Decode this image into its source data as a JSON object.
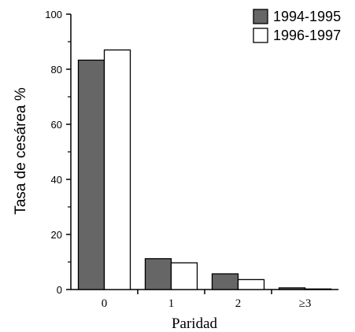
{
  "chart_data": {
    "type": "bar",
    "title": "",
    "ylabel": "Tasa de cesárea %",
    "xlabel": "Paridad",
    "categories": [
      "0",
      "1",
      "2",
      "≥3"
    ],
    "series": [
      {
        "name": "1994-1995",
        "color": "#666666",
        "values": [
          83.3,
          11.2,
          5.7,
          0.6
        ]
      },
      {
        "name": "1996-1997",
        "color": "#ffffff",
        "values": [
          87.0,
          9.7,
          3.6,
          0.2
        ]
      }
    ],
    "ylim": [
      0,
      100
    ],
    "yticks": [
      0,
      20,
      40,
      60,
      80,
      100
    ],
    "legend_position": "top-right",
    "grid": false
  }
}
